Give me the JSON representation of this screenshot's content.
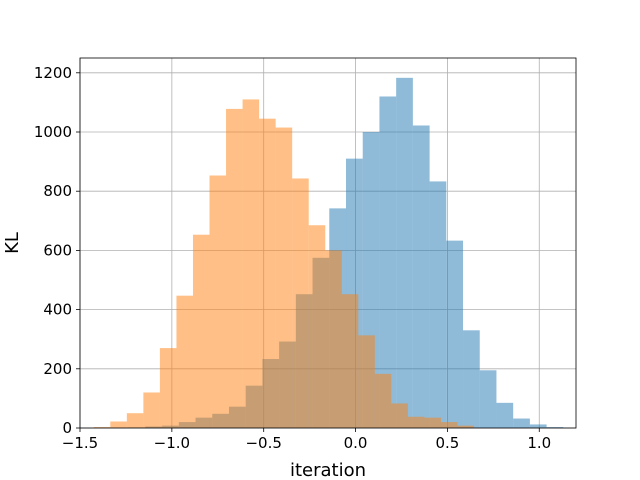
{
  "chart_data": {
    "type": "histogram",
    "title": "",
    "xlabel": "iteration",
    "ylabel": "KL",
    "xlim": [
      -1.5,
      1.2
    ],
    "ylim": [
      0,
      1250
    ],
    "xticks": [
      -1.5,
      -1.0,
      -0.5,
      0.0,
      0.5,
      1.0
    ],
    "xtick_labels": [
      "−1.5",
      "−1.0",
      "−0.5",
      "0.0",
      "0.5",
      "1.0"
    ],
    "yticks": [
      0,
      200,
      400,
      600,
      800,
      1000,
      1200
    ],
    "ytick_labels": [
      "0",
      "200",
      "400",
      "600",
      "800",
      "1000",
      "1200"
    ],
    "grid": true,
    "legend": "none",
    "series": [
      {
        "color": "#1f77b4",
        "opacity": 0.5,
        "bin_edges": [
          -1.235,
          -1.144,
          -1.053,
          -0.962,
          -0.871,
          -0.78,
          -0.689,
          -0.598,
          -0.507,
          -0.416,
          -0.325,
          -0.234,
          -0.143,
          -0.052,
          0.039,
          0.13,
          0.221,
          0.312,
          0.403,
          0.494,
          0.585,
          0.676,
          0.767,
          0.858,
          0.949,
          1.04,
          1.131
        ],
        "counts": [
          2,
          5,
          8,
          20,
          35,
          48,
          72,
          143,
          233,
          292,
          452,
          575,
          742,
          910,
          1000,
          1120,
          1183,
          1022,
          833,
          633,
          330,
          195,
          85,
          32,
          12,
          3
        ]
      },
      {
        "color": "#ff7f0e",
        "opacity": 0.5,
        "bin_edges": [
          -1.425,
          -1.335,
          -1.245,
          -1.155,
          -1.065,
          -0.975,
          -0.885,
          -0.795,
          -0.705,
          -0.615,
          -0.525,
          -0.435,
          -0.345,
          -0.255,
          -0.165,
          -0.075,
          0.015,
          0.105,
          0.195,
          0.285,
          0.375,
          0.465,
          0.555,
          0.645
        ],
        "counts": [
          3,
          22,
          50,
          120,
          270,
          447,
          653,
          853,
          1078,
          1110,
          1045,
          1015,
          843,
          685,
          600,
          452,
          313,
          183,
          83,
          38,
          35,
          20,
          8
        ]
      }
    ]
  }
}
